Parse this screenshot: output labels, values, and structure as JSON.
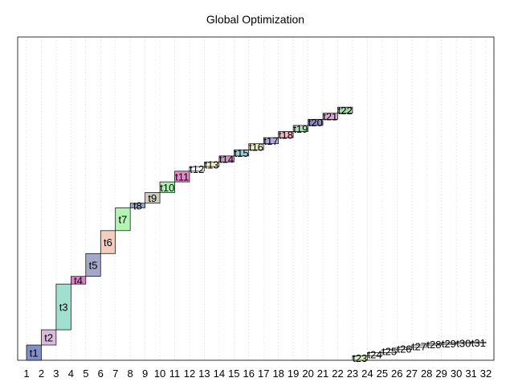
{
  "chart_data": {
    "type": "bar",
    "subtype": "gantt",
    "title": "Global Optimization",
    "xlabel": "",
    "ylabel": "",
    "x_ticks": [
      "1",
      "2",
      "3",
      "4",
      "5",
      "6",
      "7",
      "8",
      "9",
      "10",
      "11",
      "12",
      "13",
      "14",
      "15",
      "16",
      "17",
      "18",
      "19",
      "20",
      "21",
      "22",
      "23",
      "24",
      "25",
      "26",
      "27",
      "28",
      "29",
      "30",
      "31",
      "32"
    ],
    "xlim": [
      1,
      32
    ],
    "ylim": [
      0,
      21.2
    ],
    "grid": "vertical-dotted",
    "tasks": [
      {
        "name": "t1",
        "start": 1.0,
        "end": 2.0,
        "y0": 0.0,
        "y1": 1.0,
        "color": "#7f8fcc"
      },
      {
        "name": "t2",
        "start": 2.0,
        "end": 3.0,
        "y0": 1.0,
        "y1": 2.0,
        "color": "#d8bcd9"
      },
      {
        "name": "t3",
        "start": 3.0,
        "end": 4.0,
        "y0": 2.0,
        "y1": 5.0,
        "color": "#9fe0cf"
      },
      {
        "name": "t4",
        "start": 4.0,
        "end": 5.0,
        "y0": 5.0,
        "y1": 5.5,
        "color": "#dd7fc8"
      },
      {
        "name": "t5",
        "start": 5.0,
        "end": 6.0,
        "y0": 5.5,
        "y1": 7.0,
        "color": "#a4a8c8"
      },
      {
        "name": "t6",
        "start": 6.0,
        "end": 7.0,
        "y0": 7.0,
        "y1": 8.5,
        "color": "#f3cdbd"
      },
      {
        "name": "t7",
        "start": 7.0,
        "end": 8.0,
        "y0": 8.5,
        "y1": 10.0,
        "color": "#b2f5b2"
      },
      {
        "name": "t8",
        "start": 8.0,
        "end": 9.0,
        "y0": 10.0,
        "y1": 10.3,
        "color": "#8fa6c6"
      },
      {
        "name": "t9",
        "start": 9.0,
        "end": 10.0,
        "y0": 10.3,
        "y1": 11.0,
        "color": "#cfd0bf"
      },
      {
        "name": "t10",
        "start": 10.0,
        "end": 11.0,
        "y0": 11.0,
        "y1": 11.7,
        "color": "#a8efb0"
      },
      {
        "name": "t11",
        "start": 11.0,
        "end": 12.0,
        "y0": 11.7,
        "y1": 12.4,
        "color": "#e689c9"
      },
      {
        "name": "t12",
        "start": 12.0,
        "end": 13.0,
        "y0": 12.4,
        "y1": 12.7,
        "color": "#ffffff"
      },
      {
        "name": "t13",
        "start": 13.0,
        "end": 14.0,
        "y0": 12.7,
        "y1": 13.0,
        "color": "#f2efc0"
      },
      {
        "name": "t14",
        "start": 14.0,
        "end": 15.0,
        "y0": 13.0,
        "y1": 13.4,
        "color": "#cf93c4"
      },
      {
        "name": "t15",
        "start": 15.0,
        "end": 16.0,
        "y0": 13.4,
        "y1": 13.8,
        "color": "#9fcdd5"
      },
      {
        "name": "t16",
        "start": 16.0,
        "end": 17.0,
        "y0": 13.8,
        "y1": 14.2,
        "color": "#e9edb8"
      },
      {
        "name": "t17",
        "start": 17.0,
        "end": 18.0,
        "y0": 14.2,
        "y1": 14.6,
        "color": "#b4a8d8"
      },
      {
        "name": "t18",
        "start": 18.0,
        "end": 19.0,
        "y0": 14.6,
        "y1": 15.0,
        "color": "#f1b6c0"
      },
      {
        "name": "t19",
        "start": 19.0,
        "end": 20.0,
        "y0": 15.0,
        "y1": 15.4,
        "color": "#a9e3b9"
      },
      {
        "name": "t20",
        "start": 20.0,
        "end": 21.0,
        "y0": 15.4,
        "y1": 15.8,
        "color": "#8e89c8"
      },
      {
        "name": "t21",
        "start": 21.0,
        "end": 22.0,
        "y0": 15.8,
        "y1": 16.2,
        "color": "#dcaad1"
      },
      {
        "name": "t22",
        "start": 22.0,
        "end": 23.0,
        "y0": 16.2,
        "y1": 16.6,
        "color": "#a4dba8"
      },
      {
        "name": "t23",
        "start": 23.0,
        "end": 24.0,
        "y0": 0.0,
        "y1": 0.3,
        "color": "#e3f6b5"
      },
      {
        "name": "t24",
        "start": 24.0,
        "end": 25.0,
        "y0": 0.3,
        "y1": 0.5,
        "color": "#ffffff"
      },
      {
        "name": "t25",
        "start": 25.0,
        "end": 26.0,
        "y0": 0.5,
        "y1": 0.7,
        "color": "#ffffff"
      },
      {
        "name": "t26",
        "start": 26.0,
        "end": 27.0,
        "y0": 0.7,
        "y1": 0.85,
        "color": "#ffffff"
      },
      {
        "name": "t27",
        "start": 27.0,
        "end": 28.0,
        "y0": 0.85,
        "y1": 1.0,
        "color": "#ffffff"
      },
      {
        "name": "t28",
        "start": 28.0,
        "end": 29.0,
        "y0": 1.0,
        "y1": 1.1,
        "color": "#ffffff"
      },
      {
        "name": "t29",
        "start": 29.0,
        "end": 30.0,
        "y0": 1.05,
        "y1": 1.15,
        "color": "#ffffff"
      },
      {
        "name": "t30",
        "start": 30.0,
        "end": 31.0,
        "y0": 1.1,
        "y1": 1.18,
        "color": "#ffffff"
      },
      {
        "name": "t31",
        "start": 31.0,
        "end": 32.0,
        "y0": 1.12,
        "y1": 1.2,
        "color": "#ffffff"
      }
    ]
  }
}
